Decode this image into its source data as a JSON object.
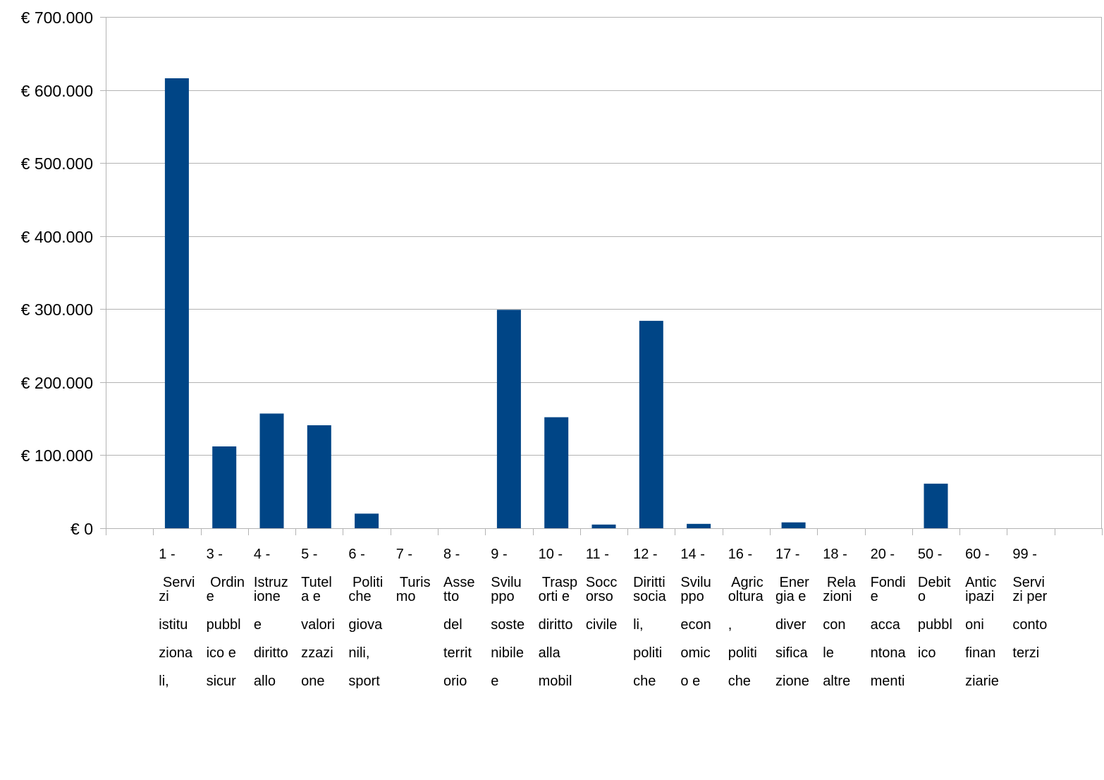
{
  "chart_data": {
    "type": "bar",
    "title": "",
    "xlabel": "",
    "ylabel": "",
    "ylim": [
      0,
      700000
    ],
    "grid": true,
    "legend": "none",
    "y_tick_labels": [
      "€ 0",
      "€ 100.000",
      "€ 200.000",
      "€ 300.000",
      "€ 400.000",
      "€ 500.000",
      "€ 600.000",
      "€ 700.000"
    ],
    "y_tick_values": [
      0,
      100000,
      200000,
      300000,
      400000,
      500000,
      600000,
      700000
    ],
    "category_labels": [
      "1 -\n\n Servi\nzi\n\nistitu\n\nziona\n\nli,",
      "3 -\n\n Ordin\ne\n\npubbl\n\nico e\n\nsicur",
      "4 -\n\nIstruz\nione\n\ne\n\ndiritto\n\nallo",
      "5 -\n\nTutel\na e\n\nvalori\n\nzzazi\n\none",
      "6 -\n\n Politi\nche\n\ngiova\n\nnili,\n\nsport",
      "7 -\n\n Turis\nmo",
      "8 -\n\nAsse\ntto\n\ndel\n\nterrit\n\norio",
      "9 -\n\nSvilu\nppo\n\nsoste\n\nnibile\n\ne",
      "10 -\n\n Trasp\norti e\n\ndiritto\n\nalla\n\nmobil",
      "11 -\n\nSocc\norso\n\ncivile",
      "12 -\n\nDiritti\nsocia\n\nli,\n\npoliti\n\nche",
      "14 -\n\nSvilu\nppo\n\necon\n\nomic\n\no e",
      "16 -\n\n Agric\noltura\n\n,\n\npoliti\n\nche",
      "17 -\n\n Ener\ngia e\n\ndiver\n\nsifica\n\nzione",
      "18 -\n\n Rela\nzioni\n\ncon\n\nle\n\naltre",
      "20 -\n\nFondi\ne\n\nacca\n\nntona\n\nmenti",
      "50 -\n\nDebit\no\n\npubbl\n\nico",
      "60 -\n\nAntic\nipazi\n\noni\n\nfinan\n\nziarie",
      "99 -\n\nServi\nzi per\n\nconto\n\nterzi"
    ],
    "values": [
      616000,
      112000,
      157000,
      141000,
      20000,
      0,
      0,
      299000,
      152000,
      5000,
      284000,
      6000,
      0,
      8000,
      0,
      0,
      61000,
      0,
      0
    ],
    "series": [
      {
        "color": "#004586"
      }
    ],
    "colors": {
      "bar": "#004586",
      "grid": "#b3b3b3",
      "axis": "#b3b3b3"
    }
  }
}
